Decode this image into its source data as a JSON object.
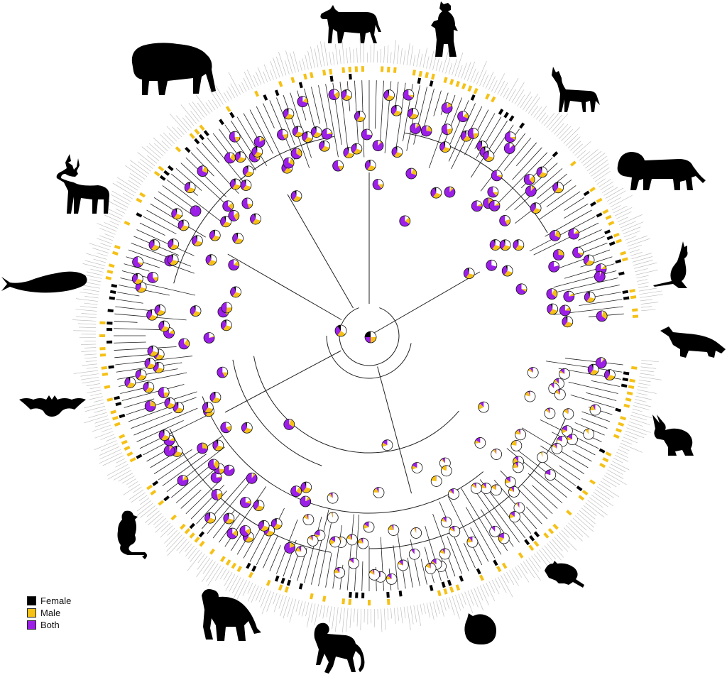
{
  "legend": {
    "items": [
      {
        "label": "Female",
        "color": "#000000"
      },
      {
        "label": "Male",
        "color": "#f5c116"
      },
      {
        "label": "Both",
        "color": "#9b1fe6"
      }
    ]
  },
  "colors": {
    "female": "#000000",
    "male": "#f5c116",
    "both": "#9b1fe6",
    "unknown": "#ffffff",
    "branch": "#222222"
  },
  "silhouettes": [
    "zebra-icon",
    "bear-icon",
    "wolf-icon",
    "lion-icon",
    "kangaroo-icon",
    "platypus-icon",
    "rabbit-icon",
    "rat-icon",
    "hamster-icon",
    "monkey-icon",
    "chimpanzee-icon",
    "lemur-icon",
    "bat-icon",
    "whale-icon",
    "deer-icon",
    "bison-icon"
  ]
}
